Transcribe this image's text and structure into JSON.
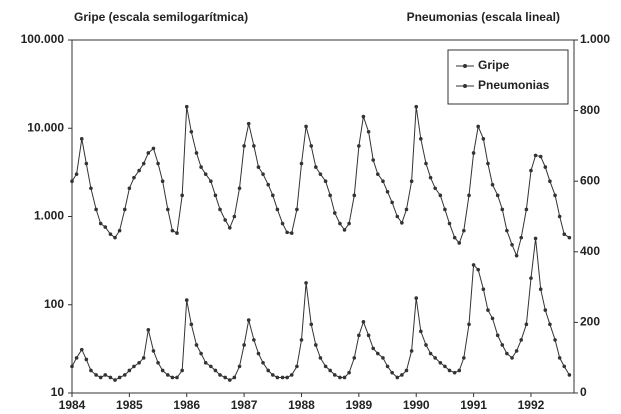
{
  "chart_data": {
    "type": "line",
    "title": "Gripe (escala semilogarítmica)",
    "y2_title": "Pneumonias (escala lineal)",
    "x": [
      1984.0,
      1984.08,
      1984.17,
      1984.25,
      1984.33,
      1984.42,
      1984.5,
      1984.58,
      1984.67,
      1984.75,
      1984.83,
      1984.92,
      1985.0,
      1985.08,
      1985.17,
      1985.25,
      1985.33,
      1985.42,
      1985.5,
      1985.58,
      1985.67,
      1985.75,
      1985.83,
      1985.92,
      1986.0,
      1986.08,
      1986.17,
      1986.25,
      1986.33,
      1986.42,
      1986.5,
      1986.58,
      1986.67,
      1986.75,
      1986.83,
      1986.92,
      1987.0,
      1987.08,
      1987.17,
      1987.25,
      1987.33,
      1987.42,
      1987.5,
      1987.58,
      1987.67,
      1987.75,
      1987.83,
      1987.92,
      1988.0,
      1988.08,
      1988.17,
      1988.25,
      1988.33,
      1988.42,
      1988.5,
      1988.58,
      1988.67,
      1988.75,
      1988.83,
      1988.92,
      1989.0,
      1989.08,
      1989.17,
      1989.25,
      1989.33,
      1989.42,
      1989.5,
      1989.58,
      1989.67,
      1989.75,
      1989.83,
      1989.92,
      1990.0,
      1990.08,
      1990.17,
      1990.25,
      1990.33,
      1990.42,
      1990.5,
      1990.58,
      1990.67,
      1990.75,
      1990.83,
      1990.92,
      1991.0,
      1991.08,
      1991.17,
      1991.25,
      1991.33,
      1991.42,
      1991.5,
      1991.58,
      1991.67,
      1991.75,
      1991.83,
      1991.92,
      1992.0,
      1992.08,
      1992.17,
      1992.25,
      1992.33,
      1992.42,
      1992.5,
      1992.58,
      1992.67
    ],
    "series": [
      {
        "name": "Gripe",
        "color": "#333333",
        "axis": "y",
        "values": [
          20,
          25,
          31,
          24,
          18,
          16,
          15,
          16,
          15,
          14,
          15,
          16,
          18,
          20,
          22,
          25,
          52,
          30,
          22,
          18,
          16,
          15,
          15,
          18,
          113,
          60,
          35,
          28,
          22,
          20,
          18,
          16,
          15,
          14,
          15,
          20,
          35,
          67,
          40,
          28,
          22,
          18,
          16,
          15,
          15,
          15,
          16,
          20,
          40,
          177,
          60,
          35,
          25,
          20,
          18,
          16,
          15,
          15,
          17,
          25,
          45,
          64,
          45,
          32,
          28,
          25,
          20,
          17,
          15,
          16,
          18,
          30,
          119,
          50,
          35,
          28,
          25,
          22,
          20,
          18,
          17,
          18,
          25,
          60,
          283,
          250,
          150,
          87,
          70,
          45,
          35,
          28,
          25,
          30,
          40,
          60,
          200,
          565,
          150,
          87,
          60,
          40,
          25,
          20,
          16
        ]
      },
      {
        "name": "Pneumonias",
        "color": "#333333",
        "axis": "y2",
        "values": [
          600,
          620,
          720,
          650,
          580,
          520,
          480,
          470,
          450,
          440,
          460,
          520,
          580,
          610,
          630,
          650,
          680,
          693,
          650,
          600,
          520,
          460,
          453,
          560,
          811,
          740,
          680,
          640,
          620,
          600,
          560,
          520,
          490,
          468,
          500,
          580,
          700,
          763,
          700,
          640,
          620,
          590,
          560,
          520,
          480,
          455,
          453,
          520,
          650,
          755,
          700,
          640,
          620,
          600,
          560,
          510,
          480,
          462,
          480,
          560,
          700,
          783,
          740,
          660,
          620,
          600,
          570,
          540,
          500,
          482,
          520,
          600,
          811,
          720,
          650,
          610,
          580,
          560,
          520,
          480,
          440,
          425,
          460,
          560,
          680,
          755,
          720,
          650,
          590,
          560,
          520,
          460,
          420,
          389,
          440,
          520,
          630,
          673,
          670,
          640,
          600,
          560,
          500,
          450,
          440
        ]
      }
    ],
    "xlim": [
      1984,
      1992.75
    ],
    "xticks": [
      1984,
      1985,
      1986,
      1987,
      1988,
      1989,
      1990,
      1991,
      1992
    ],
    "ylim": [
      10,
      100000
    ],
    "ylog": true,
    "yticks": [
      10,
      100,
      {
        "value": 1000,
        "label": "1.000"
      },
      {
        "value": 10000,
        "label": "10.000"
      },
      {
        "value": 100000,
        "label": "100.000"
      }
    ],
    "y2lim": [
      0,
      1000
    ],
    "y2ticks": [
      0,
      200,
      400,
      600,
      800,
      {
        "value": 1000,
        "label": "1.000"
      }
    ],
    "legend": "upper right"
  }
}
